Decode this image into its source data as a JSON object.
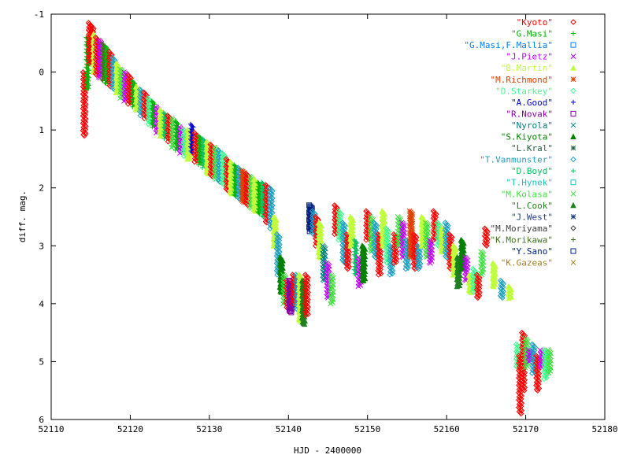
{
  "chart_data": {
    "type": "scatter",
    "xlabel": "HJD - 2400000",
    "ylabel": "diff. mag.",
    "xlim": [
      52110,
      52180
    ],
    "ylim": [
      -1,
      6
    ],
    "y_inverted": true,
    "grid": false,
    "legend_position": "top-right",
    "xticks": [
      "52110",
      "52120",
      "52130",
      "52140",
      "52150",
      "52160",
      "52170",
      "52180"
    ],
    "yticks": [
      "-1",
      "0",
      "1",
      "2",
      "3",
      "4",
      "5",
      "6"
    ],
    "series": [
      {
        "name": "\"Kyoto\"",
        "color": "#ff0000",
        "marker": "diamond"
      },
      {
        "name": "\"G.Masi\"",
        "color": "#00b000",
        "marker": "plus"
      },
      {
        "name": "\"G.Masi,F.Mallia\"",
        "color": "#0080ff",
        "marker": "square"
      },
      {
        "name": "\"J.Pietz\"",
        "color": "#c000ff",
        "marker": "cross"
      },
      {
        "name": "\"B.Martin\"",
        "color": "#c0ff40",
        "marker": "triangle"
      },
      {
        "name": "\"M.Richmond\"",
        "color": "#e04000",
        "marker": "star"
      },
      {
        "name": "\"D.Starkey\"",
        "color": "#40ff90",
        "marker": "diamond"
      },
      {
        "name": "\"A.Good\"",
        "color": "#0000d0",
        "marker": "plus"
      },
      {
        "name": "\"R.Novak\"",
        "color": "#8000a0",
        "marker": "square"
      },
      {
        "name": "\"Nyrola\"",
        "color": "#008080",
        "marker": "cross"
      },
      {
        "name": "\"S.Kiyota\"",
        "color": "#008000",
        "marker": "triangle"
      },
      {
        "name": "\"L.Kral\"",
        "color": "#206040",
        "marker": "star"
      },
      {
        "name": "\"T.Vanmunster\"",
        "color": "#20a0c0",
        "marker": "diamond"
      },
      {
        "name": "\"D.Boyd\"",
        "color": "#00c060",
        "marker": "plus"
      },
      {
        "name": "\"T.Hynek\"",
        "color": "#20c0c0",
        "marker": "square"
      },
      {
        "name": "\"M.Kolasa\"",
        "color": "#40e040",
        "marker": "cross"
      },
      {
        "name": "\"L.Cook\"",
        "color": "#208020",
        "marker": "triangle"
      },
      {
        "name": "\"J.West\"",
        "color": "#204080",
        "marker": "star"
      },
      {
        "name": "\"M.Moriyama\"",
        "color": "#404040",
        "marker": "diamond"
      },
      {
        "name": "\"K.Morikawa\"",
        "color": "#407020",
        "marker": "plus"
      },
      {
        "name": "\"Y.Sano\"",
        "color": "#002080",
        "marker": "square"
      },
      {
        "name": "\"K.Gazeas\"",
        "color": "#a08020",
        "marker": "cross"
      }
    ],
    "clusters": [
      {
        "x": 52114.2,
        "y": [
          0.0,
          1.1
        ],
        "s": 0
      },
      {
        "x": 52114.6,
        "y": [
          -0.6,
          0.3
        ],
        "s": 1
      },
      {
        "x": 52114.9,
        "y": [
          -0.85,
          -0.15
        ],
        "s": 0
      },
      {
        "x": 52115.2,
        "y": [
          -0.8,
          -0.15
        ],
        "s": 0
      },
      {
        "x": 52115.5,
        "y": [
          -0.65,
          0.0
        ],
        "s": 4
      },
      {
        "x": 52115.8,
        "y": [
          -0.6,
          0.05
        ],
        "s": 0
      },
      {
        "x": 52116.2,
        "y": [
          -0.55,
          0.1
        ],
        "s": 3
      },
      {
        "x": 52116.6,
        "y": [
          -0.5,
          0.15
        ],
        "s": 19
      },
      {
        "x": 52117.0,
        "y": [
          -0.45,
          0.2
        ],
        "s": 1
      },
      {
        "x": 52117.5,
        "y": [
          -0.35,
          0.25
        ],
        "s": 0
      },
      {
        "x": 52117.9,
        "y": [
          -0.25,
          0.3
        ],
        "s": 12
      },
      {
        "x": 52118.4,
        "y": [
          -0.15,
          0.35
        ],
        "s": 4
      },
      {
        "x": 52118.9,
        "y": [
          -0.05,
          0.45
        ],
        "s": 15
      },
      {
        "x": 52119.4,
        "y": [
          0.0,
          0.5
        ],
        "s": 3
      },
      {
        "x": 52119.9,
        "y": [
          0.05,
          0.55
        ],
        "s": 0
      },
      {
        "x": 52120.4,
        "y": [
          0.15,
          0.6
        ],
        "s": 1
      },
      {
        "x": 52120.9,
        "y": [
          0.25,
          0.65
        ],
        "s": 4
      },
      {
        "x": 52121.4,
        "y": [
          0.3,
          0.75
        ],
        "s": 12
      },
      {
        "x": 52121.9,
        "y": [
          0.35,
          0.8
        ],
        "s": 0
      },
      {
        "x": 52122.4,
        "y": [
          0.45,
          0.9
        ],
        "s": 6
      },
      {
        "x": 52122.9,
        "y": [
          0.5,
          0.95
        ],
        "s": 1
      },
      {
        "x": 52123.4,
        "y": [
          0.6,
          1.05
        ],
        "s": 3
      },
      {
        "x": 52123.9,
        "y": [
          0.65,
          1.1
        ],
        "s": 4
      },
      {
        "x": 52124.4,
        "y": [
          0.7,
          1.15
        ],
        "s": 13
      },
      {
        "x": 52124.9,
        "y": [
          0.75,
          1.2
        ],
        "s": 0
      },
      {
        "x": 52125.4,
        "y": [
          0.8,
          1.3
        ],
        "s": 15
      },
      {
        "x": 52125.9,
        "y": [
          0.85,
          1.35
        ],
        "s": 1
      },
      {
        "x": 52126.4,
        "y": [
          0.95,
          1.4
        ],
        "s": 3
      },
      {
        "x": 52126.9,
        "y": [
          1.0,
          1.45
        ],
        "s": 6
      },
      {
        "x": 52127.4,
        "y": [
          1.0,
          1.5
        ],
        "s": 4
      },
      {
        "x": 52127.8,
        "y": [
          0.9,
          1.4
        ],
        "s": 7
      },
      {
        "x": 52128.3,
        "y": [
          1.05,
          1.55
        ],
        "s": 0
      },
      {
        "x": 52128.8,
        "y": [
          1.1,
          1.6
        ],
        "s": 1
      },
      {
        "x": 52129.3,
        "y": [
          1.15,
          1.65
        ],
        "s": 13
      },
      {
        "x": 52129.8,
        "y": [
          1.2,
          1.75
        ],
        "s": 4
      },
      {
        "x": 52130.3,
        "y": [
          1.25,
          1.8
        ],
        "s": 0
      },
      {
        "x": 52130.8,
        "y": [
          1.3,
          1.85
        ],
        "s": 15
      },
      {
        "x": 52131.3,
        "y": [
          1.35,
          1.9
        ],
        "s": 12
      },
      {
        "x": 52131.8,
        "y": [
          1.4,
          1.95
        ],
        "s": 6
      },
      {
        "x": 52132.3,
        "y": [
          1.5,
          2.05
        ],
        "s": 0
      },
      {
        "x": 52132.8,
        "y": [
          1.55,
          2.1
        ],
        "s": 4
      },
      {
        "x": 52133.3,
        "y": [
          1.6,
          2.15
        ],
        "s": 1
      },
      {
        "x": 52133.8,
        "y": [
          1.65,
          2.2
        ],
        "s": 12
      },
      {
        "x": 52134.3,
        "y": [
          1.7,
          2.25
        ],
        "s": 5
      },
      {
        "x": 52134.8,
        "y": [
          1.75,
          2.3
        ],
        "s": 0
      },
      {
        "x": 52135.3,
        "y": [
          1.8,
          2.35
        ],
        "s": 15
      },
      {
        "x": 52135.8,
        "y": [
          1.85,
          2.4
        ],
        "s": 4
      },
      {
        "x": 52136.3,
        "y": [
          1.9,
          2.45
        ],
        "s": 1
      },
      {
        "x": 52136.8,
        "y": [
          1.9,
          2.5
        ],
        "s": 13
      },
      {
        "x": 52137.3,
        "y": [
          1.95,
          2.6
        ],
        "s": 0
      },
      {
        "x": 52137.8,
        "y": [
          2.0,
          2.7
        ],
        "s": 12
      },
      {
        "x": 52138.3,
        "y": [
          2.5,
          3.0
        ],
        "s": 4
      },
      {
        "x": 52138.7,
        "y": [
          2.8,
          3.5
        ],
        "s": 12
      },
      {
        "x": 52139.1,
        "y": [
          3.2,
          3.8
        ],
        "s": 10
      },
      {
        "x": 52139.5,
        "y": [
          3.5,
          4.0
        ],
        "s": 15
      },
      {
        "x": 52139.9,
        "y": [
          3.6,
          4.1
        ],
        "s": 0
      },
      {
        "x": 52140.3,
        "y": [
          3.6,
          4.15
        ],
        "s": 8
      },
      {
        "x": 52140.7,
        "y": [
          3.5,
          4.0
        ],
        "s": 0
      },
      {
        "x": 52141.1,
        "y": [
          3.5,
          4.1
        ],
        "s": 12
      },
      {
        "x": 52141.5,
        "y": [
          3.5,
          4.3
        ],
        "s": 4
      },
      {
        "x": 52141.9,
        "y": [
          3.6,
          4.35
        ],
        "s": 16
      },
      {
        "x": 52142.3,
        "y": [
          3.5,
          4.2
        ],
        "s": 0
      },
      {
        "x": 52142.8,
        "y": [
          2.3,
          2.75
        ],
        "s": 20
      },
      {
        "x": 52143.2,
        "y": [
          2.4,
          2.8
        ],
        "s": 12
      },
      {
        "x": 52143.6,
        "y": [
          2.5,
          3.0
        ],
        "s": 0
      },
      {
        "x": 52144.0,
        "y": [
          2.6,
          3.2
        ],
        "s": 4
      },
      {
        "x": 52144.5,
        "y": [
          3.0,
          3.6
        ],
        "s": 9
      },
      {
        "x": 52145.0,
        "y": [
          3.3,
          3.9
        ],
        "s": 3
      },
      {
        "x": 52145.5,
        "y": [
          3.5,
          4.0
        ],
        "s": 15
      },
      {
        "x": 52146.0,
        "y": [
          2.3,
          2.8
        ],
        "s": 0
      },
      {
        "x": 52146.5,
        "y": [
          2.4,
          2.9
        ],
        "s": 6
      },
      {
        "x": 52147.0,
        "y": [
          2.6,
          3.3
        ],
        "s": 12
      },
      {
        "x": 52147.5,
        "y": [
          2.8,
          3.4
        ],
        "s": 0
      },
      {
        "x": 52148.0,
        "y": [
          2.5,
          3.0
        ],
        "s": 4
      },
      {
        "x": 52148.5,
        "y": [
          2.9,
          3.5
        ],
        "s": 13
      },
      {
        "x": 52149.0,
        "y": [
          3.2,
          3.7
        ],
        "s": 3
      },
      {
        "x": 52149.5,
        "y": [
          3.0,
          3.6
        ],
        "s": 10
      },
      {
        "x": 52150.0,
        "y": [
          2.4,
          2.9
        ],
        "s": 0
      },
      {
        "x": 52150.5,
        "y": [
          2.5,
          3.1
        ],
        "s": 15
      },
      {
        "x": 52151.0,
        "y": [
          2.6,
          3.2
        ],
        "s": 12
      },
      {
        "x": 52151.5,
        "y": [
          2.8,
          3.5
        ],
        "s": 0
      },
      {
        "x": 52152.0,
        "y": [
          2.4,
          3.0
        ],
        "s": 4
      },
      {
        "x": 52152.5,
        "y": [
          2.7,
          3.3
        ],
        "s": 6
      },
      {
        "x": 52153.0,
        "y": [
          3.0,
          3.5
        ],
        "s": 12
      },
      {
        "x": 52153.5,
        "y": [
          2.8,
          3.3
        ],
        "s": 0
      },
      {
        "x": 52154.0,
        "y": [
          2.5,
          3.0
        ],
        "s": 15
      },
      {
        "x": 52154.5,
        "y": [
          2.6,
          3.2
        ],
        "s": 3
      },
      {
        "x": 52155.0,
        "y": [
          2.9,
          3.4
        ],
        "s": 12
      },
      {
        "x": 52155.5,
        "y": [
          2.4,
          3.2
        ],
        "s": 5
      },
      {
        "x": 52156.0,
        "y": [
          2.8,
          3.4
        ],
        "s": 0
      },
      {
        "x": 52156.5,
        "y": [
          3.0,
          3.4
        ],
        "s": 12
      },
      {
        "x": 52157.0,
        "y": [
          2.5,
          3.0
        ],
        "s": 4
      },
      {
        "x": 52157.5,
        "y": [
          2.6,
          3.2
        ],
        "s": 15
      },
      {
        "x": 52158.0,
        "y": [
          2.9,
          3.3
        ],
        "s": 3
      },
      {
        "x": 52158.5,
        "y": [
          2.4,
          2.9
        ],
        "s": 0
      },
      {
        "x": 52159.0,
        "y": [
          2.6,
          3.0
        ],
        "s": 6
      },
      {
        "x": 52159.5,
        "y": [
          2.7,
          3.1
        ],
        "s": 4
      },
      {
        "x": 52160.0,
        "y": [
          2.6,
          3.2
        ],
        "s": 12
      },
      {
        "x": 52160.5,
        "y": [
          2.8,
          3.4
        ],
        "s": 0
      },
      {
        "x": 52161.0,
        "y": [
          3.0,
          3.5
        ],
        "s": 4
      },
      {
        "x": 52161.5,
        "y": [
          3.2,
          3.7
        ],
        "s": 16
      },
      {
        "x": 52162.0,
        "y": [
          2.9,
          3.4
        ],
        "s": 10
      },
      {
        "x": 52162.5,
        "y": [
          3.2,
          3.6
        ],
        "s": 3
      },
      {
        "x": 52163.0,
        "y": [
          3.5,
          3.8
        ],
        "s": 4
      },
      {
        "x": 52163.5,
        "y": [
          3.4,
          3.8
        ],
        "s": 6
      },
      {
        "x": 52164.0,
        "y": [
          3.5,
          3.9
        ],
        "s": 0
      },
      {
        "x": 52164.5,
        "y": [
          3.1,
          3.5
        ],
        "s": 15
      },
      {
        "x": 52165.0,
        "y": [
          2.7,
          3.0
        ],
        "s": 0
      },
      {
        "x": 52166.0,
        "y": [
          3.3,
          3.7
        ],
        "s": 4
      },
      {
        "x": 52167.0,
        "y": [
          3.6,
          3.9
        ],
        "s": 12
      },
      {
        "x": 52168.0,
        "y": [
          3.7,
          3.9
        ],
        "s": 4
      },
      {
        "x": 52169.0,
        "y": [
          4.7,
          5.1
        ],
        "s": 6
      },
      {
        "x": 52169.3,
        "y": [
          4.9,
          5.9
        ],
        "s": 0
      },
      {
        "x": 52169.7,
        "y": [
          4.5,
          5.5
        ],
        "s": 0
      },
      {
        "x": 52170.1,
        "y": [
          4.6,
          5.1
        ],
        "s": 15
      },
      {
        "x": 52170.5,
        "y": [
          4.8,
          5.0
        ],
        "s": 3
      },
      {
        "x": 52171.0,
        "y": [
          4.7,
          5.2
        ],
        "s": 12
      },
      {
        "x": 52171.5,
        "y": [
          4.9,
          5.5
        ],
        "s": 0
      },
      {
        "x": 52172.0,
        "y": [
          4.8,
          5.1
        ],
        "s": 3
      },
      {
        "x": 52172.5,
        "y": [
          4.8,
          5.3
        ],
        "s": 6
      },
      {
        "x": 52173.0,
        "y": [
          4.8,
          5.2
        ],
        "s": 15
      }
    ]
  }
}
